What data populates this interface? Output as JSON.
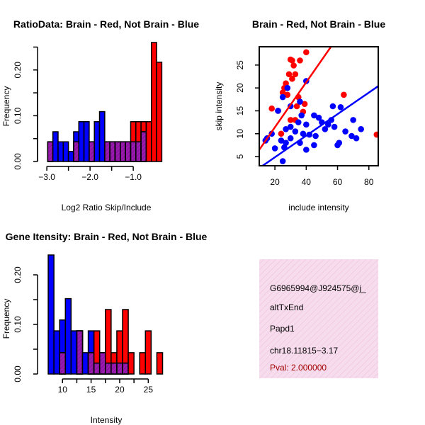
{
  "colors": {
    "red": "#ff0000",
    "blue": "#0000ff",
    "overlap": "#9a1ab0",
    "panel_bg": "#f7dced",
    "pval": "#a00000"
  },
  "chart_data": [
    {
      "id": "ratio",
      "type": "bar",
      "title": "RatioData: Brain - Red, Not Brain - Blue",
      "xlabel": "Log2 Ratio Skip/Include",
      "ylabel": "Frequency",
      "xlim": [
        -3.1,
        -0.15
      ],
      "ylim": [
        0,
        0.26
      ],
      "xticks": [
        -3.0,
        -2.0,
        -1.0
      ],
      "xtick_labels": [
        "−3.0",
        "−2.0",
        "−1.0"
      ],
      "yticks": [
        0.0,
        0.1,
        0.2
      ],
      "ytick_labels": [
        "0.00",
        "0.10",
        "0.20"
      ],
      "bin_edges": [
        -2.98,
        -2.86,
        -2.74,
        -2.62,
        -2.5,
        -2.38,
        -2.26,
        -2.14,
        -2.02,
        -1.9,
        -1.78,
        -1.66,
        -1.54,
        -1.42,
        -1.3,
        -1.18,
        -1.06,
        -0.94,
        -0.82,
        -0.7,
        -0.58,
        -0.46,
        -0.34,
        -0.22
      ],
      "series": [
        {
          "name": "Not Brain",
          "color": "blue",
          "values": [
            0.043,
            0.065,
            0.043,
            0.043,
            0.022,
            0.065,
            0.087,
            0.087,
            0.043,
            0.087,
            0.109,
            0.043,
            0.043,
            0.043,
            0.043,
            0.043,
            0.043,
            0.043,
            0.065,
            0.0,
            0.0,
            0.0,
            0.0
          ]
        },
        {
          "name": "Brain",
          "color": "red",
          "values": [
            0.043,
            0.0,
            0.0,
            0.0,
            0.0,
            0.043,
            0.0,
            0.0,
            0.043,
            0.0,
            0.0,
            0.043,
            0.043,
            0.043,
            0.043,
            0.043,
            0.087,
            0.087,
            0.087,
            0.087,
            0.26,
            0.217,
            0.0
          ]
        }
      ]
    },
    {
      "id": "scatter",
      "type": "scatter",
      "title": "Brain - Red, Not Brain - Blue",
      "xlabel": "include intensity",
      "ylabel": "skip intensity",
      "xlim": [
        10,
        86
      ],
      "ylim": [
        3,
        29
      ],
      "xticks": [
        20,
        40,
        60,
        80
      ],
      "yticks": [
        5,
        10,
        15,
        20,
        25
      ],
      "series": [
        {
          "name": "Brain",
          "color": "red",
          "points": [
            [
              30,
              26.2
            ],
            [
              31,
              26
            ],
            [
              36,
              26
            ],
            [
              40,
              27.8
            ],
            [
              32,
              24.9
            ],
            [
              33,
              23
            ],
            [
              29,
              23
            ],
            [
              31,
              22
            ],
            [
              27,
              21
            ],
            [
              26,
              20
            ],
            [
              25,
              19
            ],
            [
              28,
              18.5
            ],
            [
              35,
              18
            ],
            [
              39,
              16.5
            ],
            [
              34,
              16
            ],
            [
              18,
              15.5
            ],
            [
              22,
              15
            ],
            [
              38,
              14.8
            ],
            [
              30,
              13
            ],
            [
              33,
              13
            ],
            [
              64,
              18.5
            ],
            [
              85,
              9.8
            ],
            [
              24,
              10
            ]
          ]
        },
        {
          "name": "Not Brain",
          "color": "blue",
          "points": [
            [
              28,
              20
            ],
            [
              40,
              21.5
            ],
            [
              25,
              18
            ],
            [
              36,
              17
            ],
            [
              30,
              16
            ],
            [
              22,
              15
            ],
            [
              37,
              14
            ],
            [
              45,
              14
            ],
            [
              48,
              13.5
            ],
            [
              50,
              12.5
            ],
            [
              56,
              13
            ],
            [
              62,
              15.8
            ],
            [
              57,
              16
            ],
            [
              35,
              12.5
            ],
            [
              40,
              12
            ],
            [
              30,
              11.5
            ],
            [
              27,
              11
            ],
            [
              33,
              10.5
            ],
            [
              38,
              10
            ],
            [
              42,
              9.8
            ],
            [
              46,
              9.5
            ],
            [
              52,
              11
            ],
            [
              54,
              12
            ],
            [
              58,
              11.5
            ],
            [
              65,
              10.5
            ],
            [
              70,
              13
            ],
            [
              72,
              9
            ],
            [
              75,
              11
            ],
            [
              69,
              9.5
            ],
            [
              60,
              7.5
            ],
            [
              61,
              8
            ],
            [
              45,
              7.5
            ],
            [
              40,
              6.5
            ],
            [
              30,
              9
            ],
            [
              27,
              8
            ],
            [
              24,
              8.5
            ],
            [
              20,
              6.8
            ],
            [
              18,
              10
            ],
            [
              15,
              9
            ],
            [
              14,
              8.5
            ],
            [
              26,
              7
            ],
            [
              25,
              4
            ],
            [
              36,
              8
            ]
          ]
        }
      ],
      "fit_lines": [
        {
          "series": "Brain",
          "color": "red",
          "from": [
            10,
            6.5
          ],
          "to": [
            55.8,
            29
          ]
        },
        {
          "series": "Not Brain",
          "color": "blue",
          "from": [
            10,
            2.5
          ],
          "to": [
            86,
            20.4
          ]
        }
      ]
    },
    {
      "id": "intensity",
      "type": "bar",
      "title": "Gene Itensity: Brain - Red, Not Brain - Blue",
      "xlabel": "Intensity",
      "ylabel": "Frequency",
      "xlim": [
        6.5,
        28.8
      ],
      "ylim": [
        0,
        0.24
      ],
      "xticks": [
        10,
        15,
        20,
        25
      ],
      "xtick_labels": [
        "10",
        "15",
        "20",
        "25"
      ],
      "yticks": [
        0.0,
        0.1,
        0.2
      ],
      "ytick_labels": [
        "0.00",
        "0.10",
        "0.20"
      ],
      "bin_edges": [
        7.5,
        8.5,
        9.5,
        10.5,
        11.5,
        12.5,
        13.5,
        14.5,
        15.5,
        16.5,
        17.5,
        18.5,
        19.5,
        20.5,
        21.5,
        22.5,
        23.5,
        24.5,
        25.5,
        26.5,
        27.5
      ],
      "series": [
        {
          "name": "Not Brain",
          "color": "blue",
          "values": [
            0.24,
            0.087,
            0.109,
            0.152,
            0.087,
            0.087,
            0.043,
            0.087,
            0.022,
            0.043,
            0.022,
            0.022,
            0.022,
            0.022,
            0.0,
            0.0,
            0.0,
            0.0,
            0.0,
            0.0
          ]
        },
        {
          "name": "Brain",
          "color": "red",
          "values": [
            0.0,
            0.0,
            0.043,
            0.0,
            0.0,
            0.087,
            0.0,
            0.043,
            0.087,
            0.043,
            0.13,
            0.043,
            0.087,
            0.13,
            0.043,
            0.0,
            0.043,
            0.087,
            0.0,
            0.043
          ]
        }
      ]
    }
  ],
  "info": {
    "event_id": "G6965994@J924575@j_",
    "event_type": "altTxEnd",
    "gene": "Papd1",
    "location": "chr18.11815−3.17",
    "pval": "Pval: 2.000000"
  }
}
